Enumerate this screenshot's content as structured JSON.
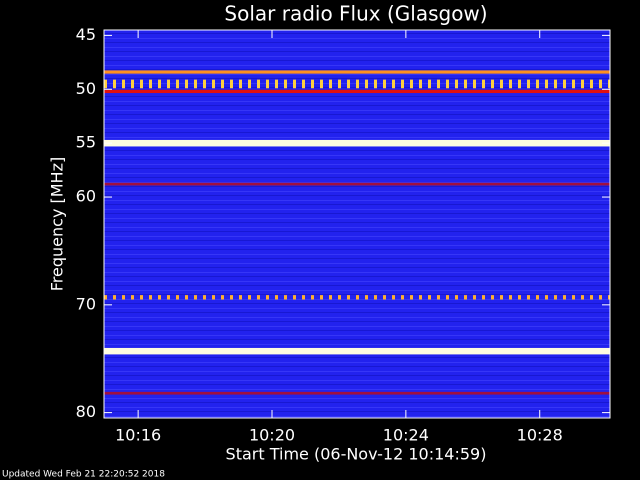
{
  "chart_data": {
    "type": "spectrogram",
    "title": "Solar radio Flux (Glasgow)",
    "ylabel": "Frequency [MHz]",
    "xlabel": "Start Time (06-Nov-12 10:14:59)",
    "footer": "Updated Wed Feb 21 22:20:52 2018",
    "background_color": "#2222ee",
    "xlim": [
      14.98,
      30.1
    ],
    "xticks": [
      {
        "value": 16,
        "label": "10:16"
      },
      {
        "value": 20,
        "label": "10:20"
      },
      {
        "value": 24,
        "label": "10:24"
      },
      {
        "value": 28,
        "label": "10:28"
      }
    ],
    "ylim": [
      80.5,
      44.5
    ],
    "yticks": [
      45,
      50,
      55,
      60,
      70,
      80
    ],
    "bands": [
      {
        "freq": 48.4,
        "width": 0.3,
        "color": "#ff9020",
        "dashed": false
      },
      {
        "freq": 49.5,
        "width": 0.8,
        "color": "#ffd040",
        "dashed": true
      },
      {
        "freq": 50.2,
        "width": 0.3,
        "color": "#e01010",
        "dashed": false
      },
      {
        "freq": 55.0,
        "width": 0.6,
        "color": "#fffde0",
        "dashed": false
      },
      {
        "freq": 58.8,
        "width": 0.25,
        "color": "#a01040",
        "dashed": false
      },
      {
        "freq": 69.3,
        "width": 0.4,
        "color": "#ffb030",
        "dashed": true
      },
      {
        "freq": 74.3,
        "width": 0.6,
        "color": "#fffde0",
        "dashed": false
      },
      {
        "freq": 78.2,
        "width": 0.25,
        "color": "#a01040",
        "dashed": false
      }
    ]
  }
}
